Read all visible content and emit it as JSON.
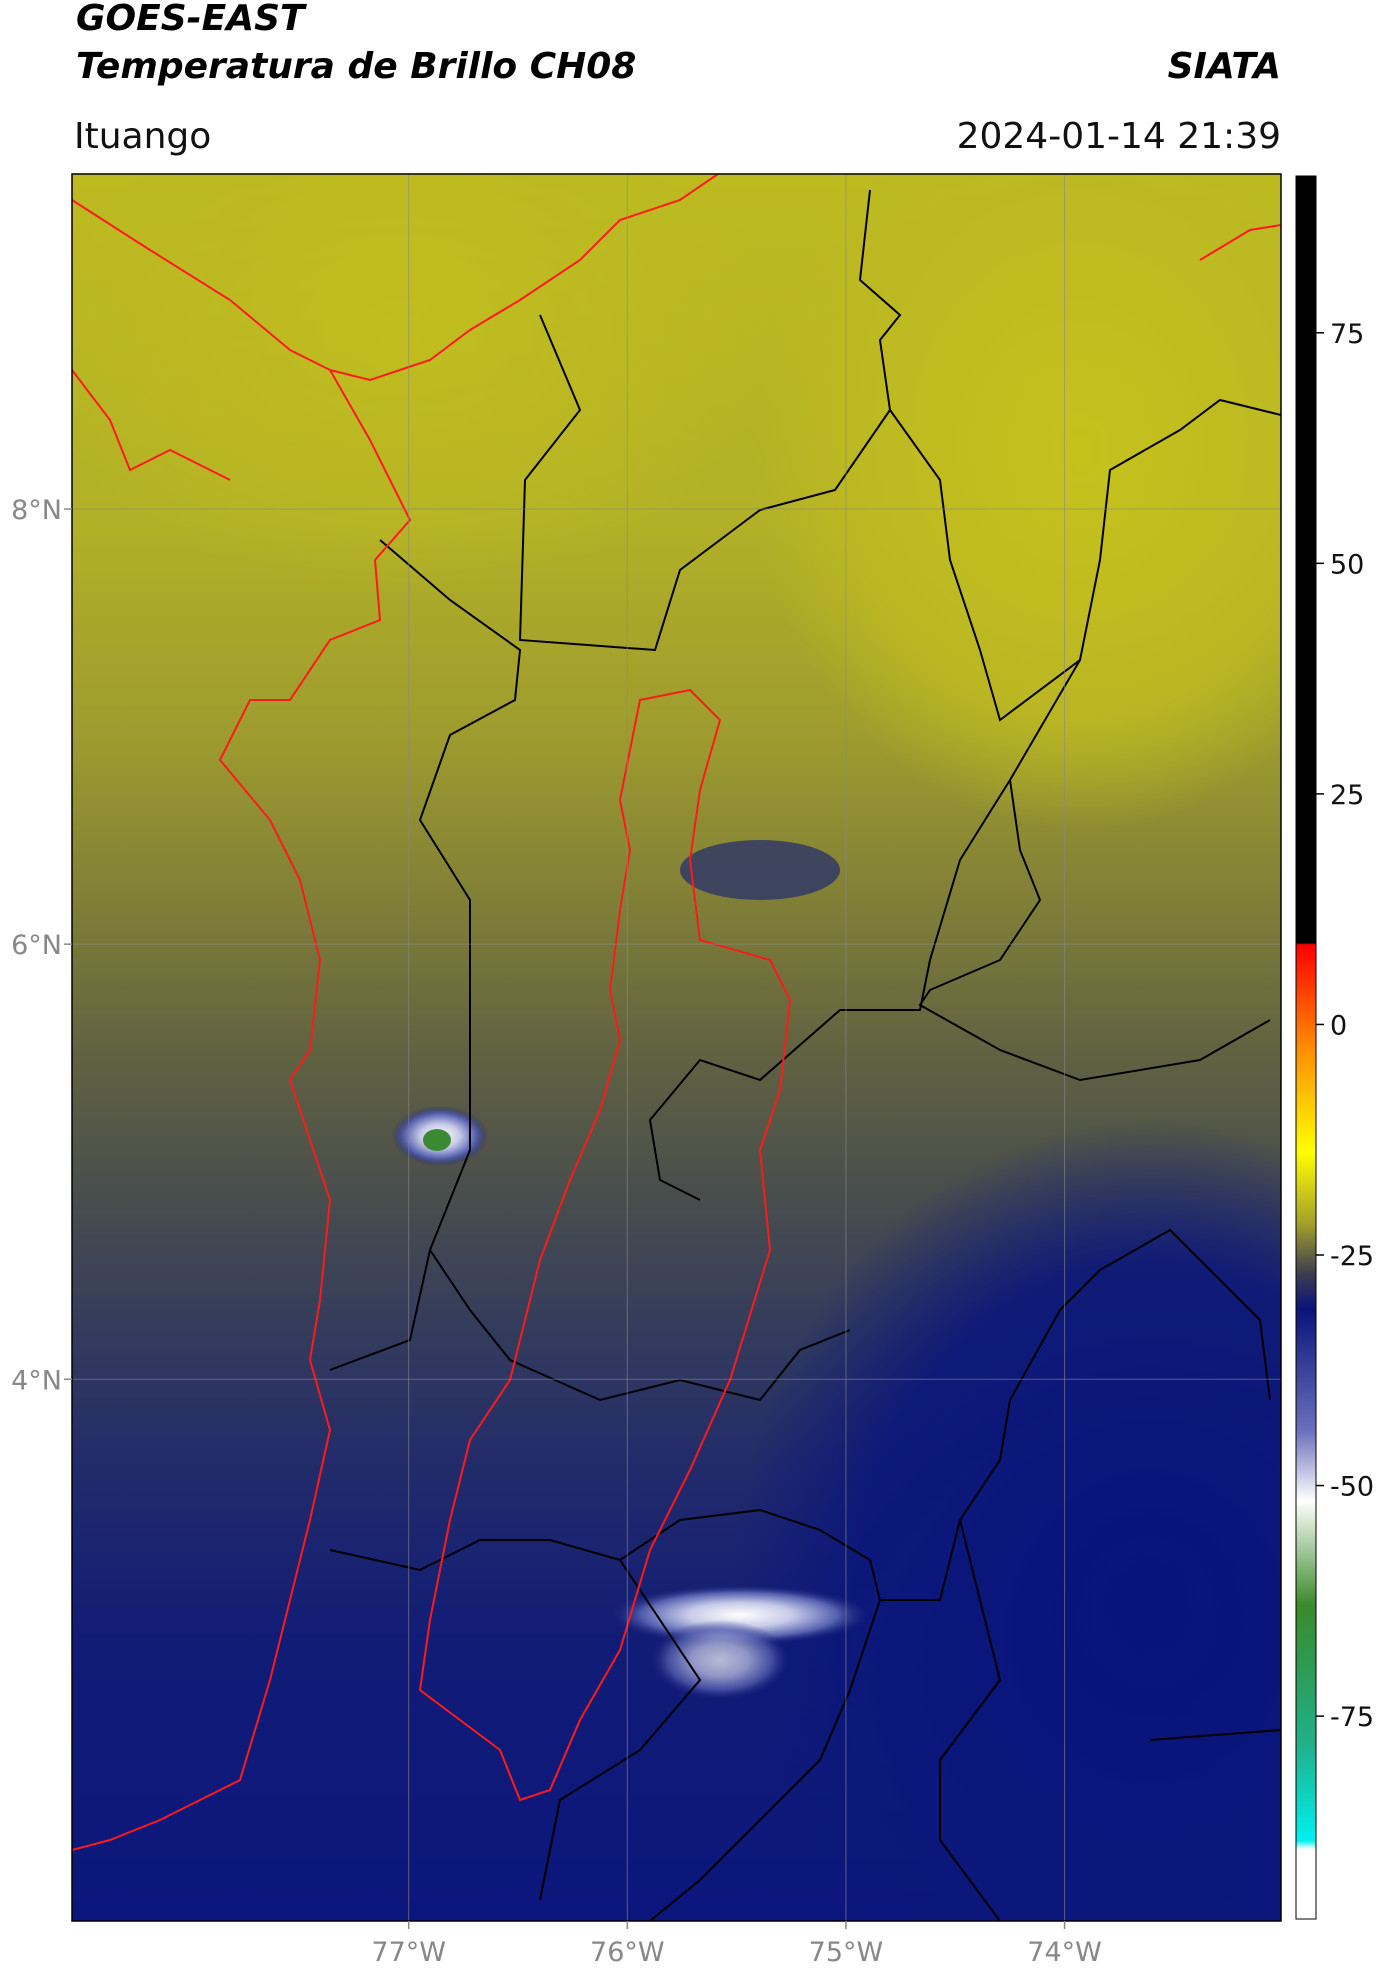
{
  "title": "GOES-EAST",
  "subtitle": "Temperatura de Brillo CH08",
  "credit": "SIATA",
  "location": "Ituango",
  "datetime": "2024-01-14 21:39",
  "map": {
    "xlim": [
      -78.54,
      -73.01
    ],
    "ylim": [
      1.51,
      9.54
    ],
    "xticks": [
      {
        "value": -77,
        "label": "77°W"
      },
      {
        "value": -76,
        "label": "76°W"
      },
      {
        "value": -75,
        "label": "75°W"
      },
      {
        "value": -74,
        "label": "74°W"
      }
    ],
    "yticks": [
      {
        "value": 8,
        "label": "8°N"
      },
      {
        "value": 6,
        "label": "6°N"
      },
      {
        "value": 4,
        "label": "4°N"
      }
    ],
    "grid": true
  },
  "colorbar": {
    "clim": [
      -97,
      92
    ],
    "ticks": [
      75,
      50,
      25,
      0,
      -25,
      -50,
      -75
    ]
  }
}
